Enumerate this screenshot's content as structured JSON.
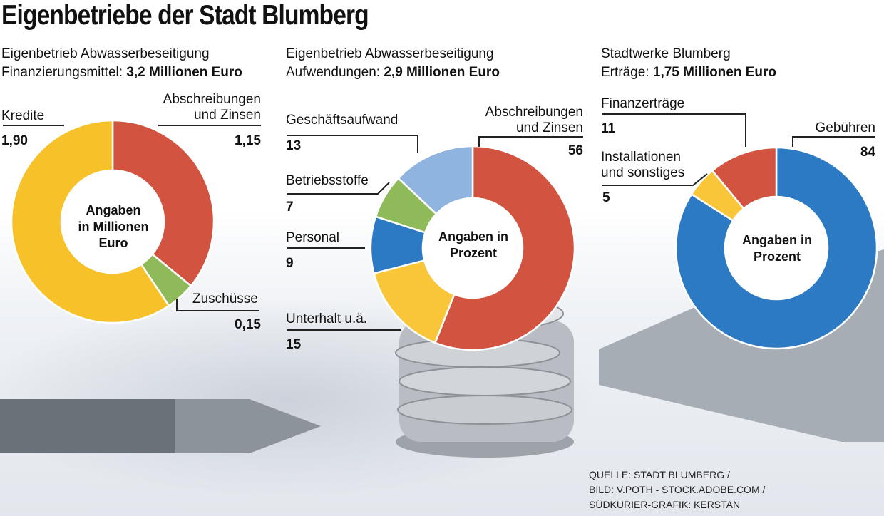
{
  "title": "Eigenbetriebe der Stadt Blumberg",
  "colors": {
    "red": "#d2533f",
    "yellow": "#f7c12a",
    "green": "#8fba5a",
    "lightblue": "#8fb4e0",
    "blue": "#2d7ac4",
    "orange_yellow": "#f9c63a"
  },
  "chart_data": [
    {
      "type": "pie",
      "title_line1": "Eigenbetrieb Abwasserbeseitigung",
      "title_label": "Finanzierungsmittel:",
      "title_value": "3,2 Millionen Euro",
      "center_text": [
        "Angaben",
        "in Millionen",
        "Euro"
      ],
      "unit": "Millionen Euro",
      "slices": [
        {
          "label": "Abschreibungen und Zinsen",
          "label_lines": [
            "Abschreibungen",
            "und Zinsen"
          ],
          "value": 1.15,
          "value_text": "1,15",
          "color": "#d2533f"
        },
        {
          "label": "Zuschüsse",
          "label_lines": [
            "Zuschüsse"
          ],
          "value": 0.15,
          "value_text": "0,15",
          "color": "#8fba5a"
        },
        {
          "label": "Kredite",
          "label_lines": [
            "Kredite"
          ],
          "value": 1.9,
          "value_text": "1,90",
          "color": "#f7c12a"
        }
      ]
    },
    {
      "type": "pie",
      "title_line1": "Eigenbetrieb Abwasserbeseitigung",
      "title_label": "Aufwendungen:",
      "title_value": "2,9 Millionen Euro",
      "center_text": [
        "Angaben in",
        "Prozent"
      ],
      "unit": "Prozent",
      "slices": [
        {
          "label": "Abschreibungen und Zinsen",
          "label_lines": [
            "Abschreibungen",
            "und Zinsen"
          ],
          "value": 56,
          "value_text": "56",
          "color": "#d2533f"
        },
        {
          "label": "Unterhalt u.ä.",
          "label_lines": [
            "Unterhalt u.ä."
          ],
          "value": 15,
          "value_text": "15",
          "color": "#f9c63a"
        },
        {
          "label": "Personal",
          "label_lines": [
            "Personal"
          ],
          "value": 9,
          "value_text": "9",
          "color": "#2d7ac4"
        },
        {
          "label": "Betriebsstoffe",
          "label_lines": [
            "Betriebsstoffe"
          ],
          "value": 7,
          "value_text": "7",
          "color": "#8fba5a"
        },
        {
          "label": "Geschäftsaufwand",
          "label_lines": [
            "Geschäftsaufwand"
          ],
          "value": 13,
          "value_text": "13",
          "color": "#8fb4e0"
        }
      ]
    },
    {
      "type": "pie",
      "title_line1": "Stadtwerke Blumberg",
      "title_label": "Erträge:",
      "title_value": "1,75 Millionen Euro",
      "center_text": [
        "Angaben in",
        "Prozent"
      ],
      "unit": "Prozent",
      "slices": [
        {
          "label": "Gebühren",
          "label_lines": [
            "Gebühren"
          ],
          "value": 84,
          "value_text": "84",
          "color": "#2d7ac4"
        },
        {
          "label": "Installationen und sonstiges",
          "label_lines": [
            "Installationen",
            "und sonstiges"
          ],
          "value": 5,
          "value_text": "5",
          "color": "#f9c63a"
        },
        {
          "label": "Finanzerträge",
          "label_lines": [
            "Finanzerträge"
          ],
          "value": 11,
          "value_text": "11",
          "color": "#d2533f"
        }
      ]
    }
  ],
  "credit": [
    "QUELLE: STADT BLUMBERG /",
    "BILD: V.POTH - STOCK.ADOBE.COM /",
    "SÜDKURIER-GRAFIK: KERSTAN"
  ]
}
